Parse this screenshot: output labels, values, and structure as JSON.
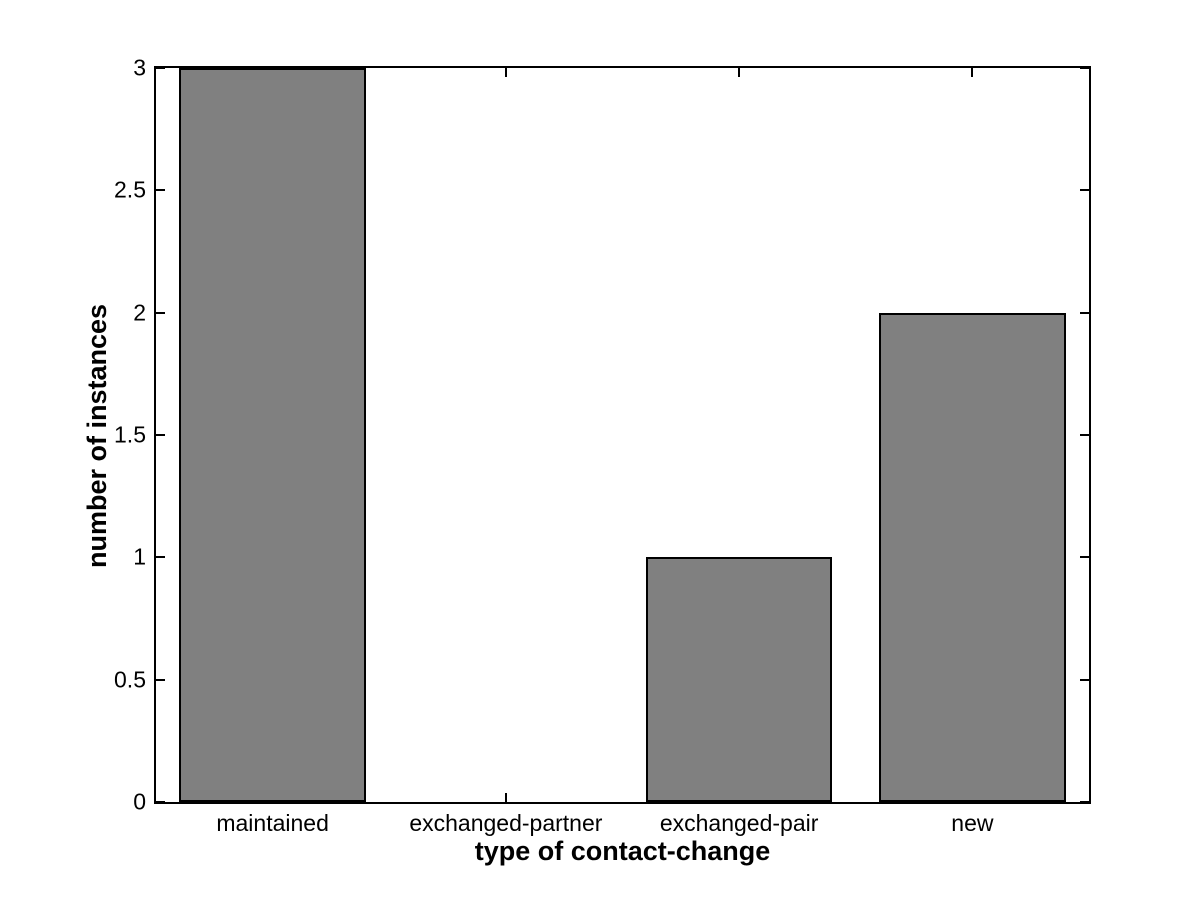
{
  "chart_data": {
    "type": "bar",
    "title": "",
    "xlabel": "type of contact-change",
    "ylabel": "number of instances",
    "categories": [
      "maintained",
      "exchanged-partner",
      "exchanged-pair",
      "new"
    ],
    "values": [
      3,
      0,
      1,
      2
    ],
    "xlim": [
      0.5,
      4.5
    ],
    "ylim": [
      0,
      3
    ],
    "yticks": [
      0,
      0.5,
      1,
      1.5,
      2,
      2.5,
      3
    ],
    "bar_rel_width": 0.8,
    "bar_fill_color": "#808080",
    "bar_edge_color": "#000000",
    "axis_color": "#000000",
    "background_color": "#ffffff",
    "grid": false,
    "legend": null,
    "box": "on, ticks mirrored inward on all four sides"
  }
}
